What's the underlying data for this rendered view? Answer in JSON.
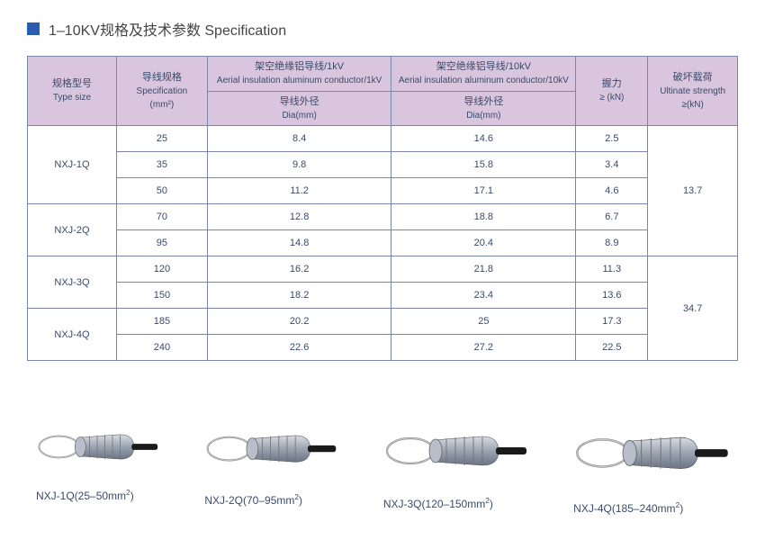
{
  "title": "1–10KV规格及技术参数 Specification",
  "colors": {
    "header_bg": "#d9c5dd",
    "border": "#7a88a8",
    "text": "#3a4a6a",
    "square": "#2a5db0"
  },
  "headers": {
    "type_cn": "规格型号",
    "type_en": "Type size",
    "spec_cn": "导线规格",
    "spec_en": "Specification",
    "spec_unit": "(mm²)",
    "col1kv_cn": "架空绝缘铝导线/1kV",
    "col1kv_en": "Aerial insulation aluminum conductor/1kV",
    "col10kv_cn": "架空绝缘铝导线/10kV",
    "col10kv_en": "Aerial insulation aluminum conductor/10kV",
    "dia_cn": "导线外径",
    "dia_en": "Dia(mm)",
    "grip_cn": "握力",
    "grip_unit": "≥ (kN)",
    "ult_cn": "破坏载荷",
    "ult_en": "Ultinate strength",
    "ult_unit": "≥(kN)"
  },
  "rows": [
    {
      "type": "NXJ-1Q",
      "spec": "25",
      "d1": "8.4",
      "d10": "14.6",
      "grip": "2.5"
    },
    {
      "type": "",
      "spec": "35",
      "d1": "9.8",
      "d10": "15.8",
      "grip": "3.4"
    },
    {
      "type": "",
      "spec": "50",
      "d1": "11.2",
      "d10": "17.1",
      "grip": "4.6"
    },
    {
      "type": "NXJ-2Q",
      "spec": "70",
      "d1": "12.8",
      "d10": "18.8",
      "grip": "6.7"
    },
    {
      "type": "",
      "spec": "95",
      "d1": "14.8",
      "d10": "20.4",
      "grip": "8.9"
    },
    {
      "type": "NXJ-3Q",
      "spec": "120",
      "d1": "16.2",
      "d10": "21.8",
      "grip": "11.3"
    },
    {
      "type": "",
      "spec": "150",
      "d1": "18.2",
      "d10": "23.4",
      "grip": "13.6"
    },
    {
      "type": "NXJ-4Q",
      "spec": "185",
      "d1": "20.2",
      "d10": "25",
      "grip": "17.3"
    },
    {
      "type": "",
      "spec": "240",
      "d1": "22.6",
      "d10": "27.2",
      "grip": "22.5"
    }
  ],
  "ult_values": [
    "13.7",
    "34.7"
  ],
  "products": [
    {
      "label": "NXJ-1Q(25–50mm²)",
      "scale": 0.85
    },
    {
      "label": "NXJ-2Q(70–95mm²)",
      "scale": 0.92
    },
    {
      "label": "NXJ-3Q(120–150mm²)",
      "scale": 1.0
    },
    {
      "label": "NXJ-4Q(185–240mm²)",
      "scale": 1.08
    }
  ]
}
